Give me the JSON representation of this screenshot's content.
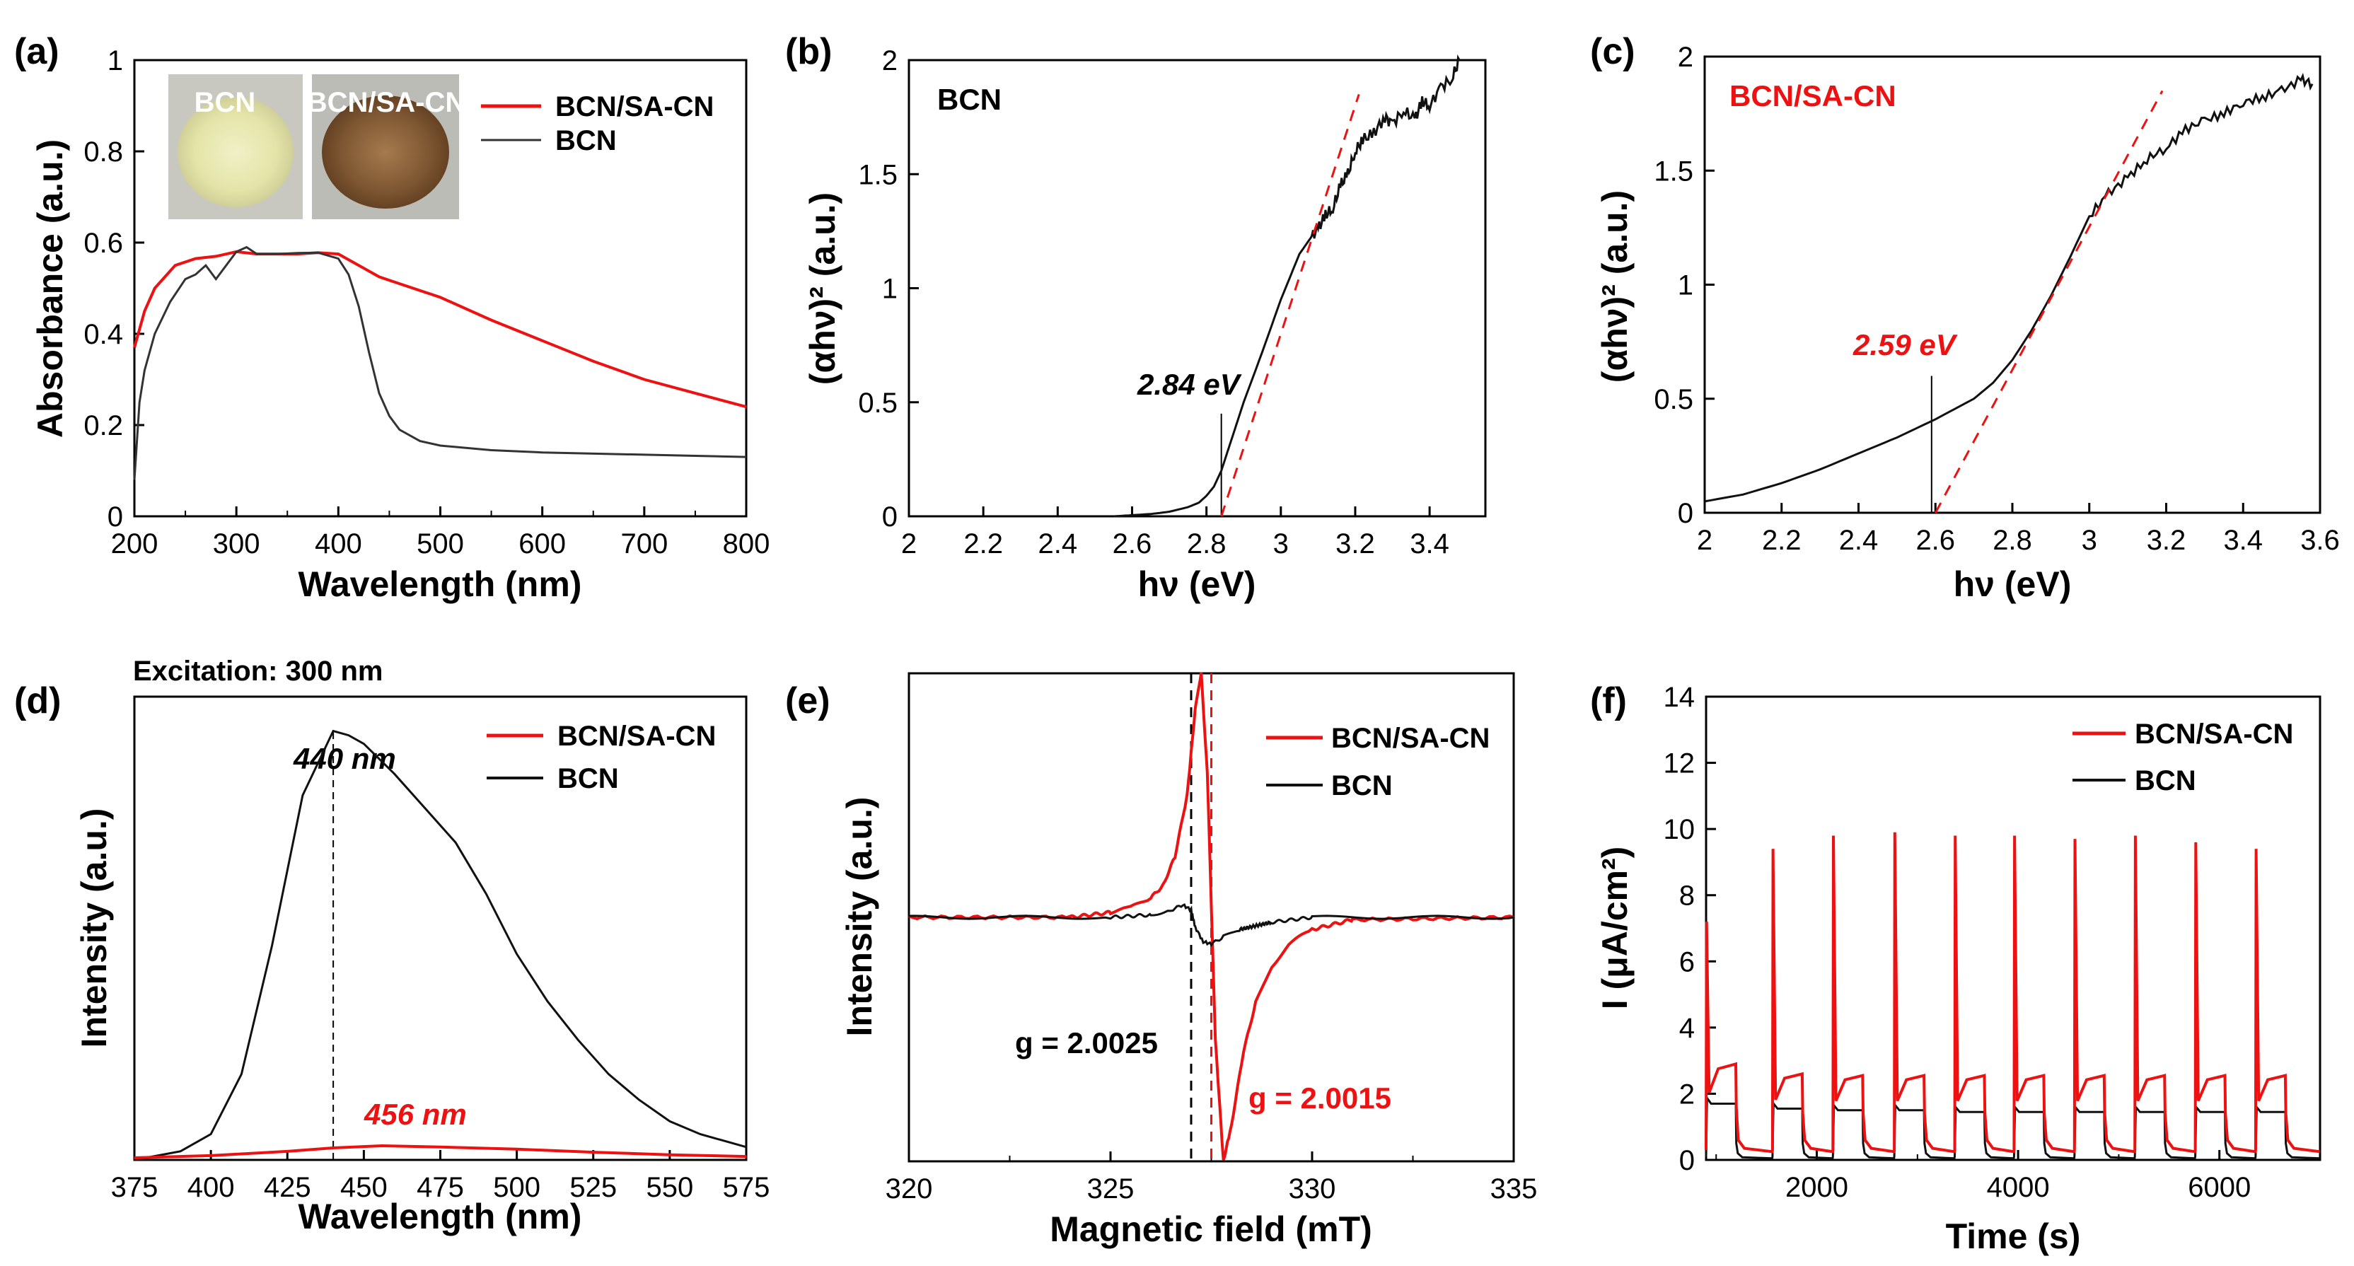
{
  "colors": {
    "red": "#ee1111",
    "black": "#111111"
  },
  "chart_data": [
    {
      "panel": "(a)",
      "type": "line",
      "xlabel": "Wavelength (nm)",
      "ylabel": "Absorbance (a.u.)",
      "xlim": [
        200,
        800
      ],
      "ylim": [
        0,
        1
      ],
      "xticks": [
        "200",
        "300",
        "400",
        "500",
        "600",
        "700",
        "800"
      ],
      "yticks": [
        "0",
        "0.2",
        "0.4",
        "0.6",
        "0.8",
        "1"
      ],
      "legend": [
        "BCN/SA-CN",
        "BCN"
      ],
      "photo_labels": [
        "BCN",
        "BCN/SA-CN"
      ],
      "series": [
        {
          "name": "BCN/SA-CN",
          "color": "red",
          "x": [
            200,
            210,
            220,
            240,
            260,
            280,
            300,
            320,
            340,
            360,
            380,
            400,
            420,
            440,
            460,
            500,
            550,
            600,
            650,
            700,
            750,
            800
          ],
          "y": [
            0.37,
            0.45,
            0.5,
            0.55,
            0.565,
            0.57,
            0.58,
            0.575,
            0.575,
            0.575,
            0.578,
            0.575,
            0.55,
            0.525,
            0.51,
            0.48,
            0.43,
            0.385,
            0.34,
            0.3,
            0.27,
            0.24
          ]
        },
        {
          "name": "BCN",
          "color": "black",
          "x": [
            200,
            205,
            210,
            220,
            235,
            250,
            260,
            270,
            280,
            290,
            300,
            310,
            320,
            340,
            360,
            380,
            400,
            410,
            420,
            430,
            440,
            450,
            460,
            480,
            500,
            550,
            600,
            700,
            800
          ],
          "y": [
            0.08,
            0.25,
            0.32,
            0.4,
            0.47,
            0.52,
            0.53,
            0.55,
            0.52,
            0.55,
            0.58,
            0.59,
            0.575,
            0.575,
            0.577,
            0.578,
            0.565,
            0.53,
            0.46,
            0.36,
            0.27,
            0.22,
            0.19,
            0.165,
            0.155,
            0.145,
            0.14,
            0.135,
            0.13
          ]
        }
      ]
    },
    {
      "panel": "(b)",
      "type": "line",
      "xlabel": "hν (eV)",
      "ylabel": "(αhν)² (a.u.)",
      "xlim": [
        2,
        3.55
      ],
      "ylim": [
        0,
        2
      ],
      "xticks": [
        "2",
        "2.2",
        "2.4",
        "2.6",
        "2.8",
        "3",
        "3.2",
        "3.4"
      ],
      "yticks": [
        "0",
        "0.5",
        "1",
        "1.5",
        "2"
      ],
      "sample_label": "BCN",
      "annotation": "2.84 eV",
      "series": [
        {
          "name": "BCN",
          "color": "black",
          "x": [
            2.55,
            2.6,
            2.65,
            2.7,
            2.75,
            2.78,
            2.8,
            2.82,
            2.84,
            2.86,
            2.88,
            2.9,
            2.95,
            3.0,
            3.05,
            3.08,
            3.1,
            3.12,
            3.14,
            3.16,
            3.18,
            3.2,
            3.22,
            3.25,
            3.28,
            3.3,
            3.33,
            3.36,
            3.38,
            3.4,
            3.43,
            3.46,
            3.48
          ],
          "y": [
            0.0,
            0.005,
            0.01,
            0.02,
            0.04,
            0.06,
            0.09,
            0.13,
            0.2,
            0.3,
            0.4,
            0.5,
            0.72,
            0.95,
            1.15,
            1.22,
            1.26,
            1.32,
            1.35,
            1.45,
            1.5,
            1.6,
            1.65,
            1.68,
            1.75,
            1.72,
            1.78,
            1.74,
            1.82,
            1.8,
            1.88,
            1.92,
            2.0
          ]
        }
      ],
      "tangent": {
        "x": [
          2.84,
          3.21
        ],
        "y": [
          0.0,
          1.85
        ]
      },
      "marker_x": 2.84
    },
    {
      "panel": "(c)",
      "type": "line",
      "xlabel": "hν (eV)",
      "ylabel": "(αhν)² (a.u.)",
      "xlim": [
        2,
        3.6
      ],
      "ylim": [
        0,
        2
      ],
      "xticks": [
        "2",
        "2.2",
        "2.4",
        "2.6",
        "2.8",
        "3",
        "3.2",
        "3.4",
        "3.6"
      ],
      "yticks": [
        "0",
        "0.5",
        "1",
        "1.5",
        "2"
      ],
      "sample_label": "BCN/SA-CN",
      "annotation": "2.59 eV",
      "series": [
        {
          "name": "BCN/SA-CN",
          "color": "black",
          "x": [
            2.0,
            2.1,
            2.2,
            2.3,
            2.4,
            2.5,
            2.6,
            2.7,
            2.75,
            2.8,
            2.85,
            2.9,
            2.95,
            3.0,
            3.05,
            3.1,
            3.15,
            3.2,
            3.25,
            3.3,
            3.35,
            3.4,
            3.45,
            3.5,
            3.55,
            3.58
          ],
          "y": [
            0.05,
            0.08,
            0.13,
            0.19,
            0.26,
            0.33,
            0.41,
            0.5,
            0.57,
            0.67,
            0.8,
            0.95,
            1.12,
            1.3,
            1.4,
            1.47,
            1.55,
            1.6,
            1.68,
            1.72,
            1.75,
            1.8,
            1.82,
            1.85,
            1.9,
            1.88
          ]
        }
      ],
      "tangent": {
        "x": [
          2.6,
          3.19
        ],
        "y": [
          0.0,
          1.85
        ]
      },
      "marker_x": 2.59
    },
    {
      "panel": "(d)",
      "type": "line",
      "title": "Excitation: 300 nm",
      "xlabel": "Wavelength (nm)",
      "ylabel": "Intensity (a.u.)",
      "xlim": [
        375,
        575
      ],
      "ylim": [
        0,
        1.08
      ],
      "xticks": [
        "375",
        "400",
        "425",
        "450",
        "475",
        "500",
        "525",
        "550",
        "575"
      ],
      "legend": [
        "BCN/SA-CN",
        "BCN"
      ],
      "peak_labels": [
        "440 nm",
        "456 nm"
      ],
      "series": [
        {
          "name": "BCN/SA-CN",
          "color": "red",
          "x": [
            375,
            400,
            425,
            440,
            456,
            475,
            500,
            525,
            550,
            575
          ],
          "y": [
            0.005,
            0.01,
            0.02,
            0.028,
            0.033,
            0.03,
            0.025,
            0.018,
            0.012,
            0.008
          ]
        },
        {
          "name": "BCN",
          "color": "black",
          "x": [
            375,
            390,
            400,
            410,
            420,
            430,
            440,
            445,
            450,
            460,
            470,
            480,
            490,
            500,
            510,
            520,
            530,
            540,
            550,
            560,
            575
          ],
          "y": [
            0.0,
            0.02,
            0.06,
            0.2,
            0.5,
            0.85,
            1.0,
            0.99,
            0.97,
            0.9,
            0.82,
            0.74,
            0.62,
            0.48,
            0.37,
            0.28,
            0.2,
            0.14,
            0.09,
            0.06,
            0.03
          ]
        }
      ],
      "marker_x": 440
    },
    {
      "panel": "(e)",
      "type": "line",
      "xlabel": "Magnetic field (mT)",
      "ylabel": "Intensity (a.u.)",
      "xlim": [
        320,
        335
      ],
      "ylim": [
        -1,
        1
      ],
      "xticks": [
        "320",
        "325",
        "330",
        "335"
      ],
      "legend": [
        "BCN/SA-CN",
        "BCN"
      ],
      "g_labels": [
        "g = 2.0025",
        "g = 2.0015"
      ],
      "series": [
        {
          "name": "BCN/SA-CN",
          "color": "red",
          "x": [
            320,
            324,
            325,
            325.5,
            326,
            326.3,
            326.6,
            326.9,
            327.1,
            327.25,
            327.4,
            327.6,
            327.8,
            328,
            328.3,
            328.6,
            329,
            329.5,
            330,
            331,
            335
          ],
          "y": [
            0,
            0.0,
            0.02,
            0.04,
            0.08,
            0.13,
            0.25,
            0.5,
            0.85,
            1.0,
            0.6,
            -0.5,
            -1.0,
            -0.85,
            -0.55,
            -0.35,
            -0.2,
            -0.1,
            -0.05,
            -0.01,
            0
          ]
        },
        {
          "name": "BCN",
          "color": "black",
          "x": [
            320,
            325,
            326,
            326.5,
            326.8,
            327,
            327.1,
            327.3,
            327.5,
            327.8,
            328.2,
            329,
            330,
            335
          ],
          "y": [
            0,
            0,
            0.01,
            0.03,
            0.05,
            0.03,
            -0.04,
            -0.1,
            -0.11,
            -0.08,
            -0.05,
            -0.02,
            0,
            0
          ]
        }
      ],
      "vlines": [
        327.0,
        327.5
      ]
    },
    {
      "panel": "(f)",
      "type": "line",
      "xlabel": "Time (s)",
      "ylabel": "I (μA/cm²)",
      "xlim": [
        900,
        7000
      ],
      "ylim": [
        0,
        14
      ],
      "xticks": [
        "2000",
        "4000",
        "6000"
      ],
      "yticks": [
        "0",
        "2",
        "4",
        "6",
        "8",
        "10",
        "12",
        "14"
      ],
      "legend": [
        "BCN/SA-CN",
        "BCN"
      ],
      "on_times": [
        900,
        1560,
        2160,
        2770,
        3370,
        3960,
        4560,
        5160,
        5760,
        6360
      ],
      "period_on": 300,
      "red_spike": [
        7.2,
        9.4,
        9.8,
        9.9,
        9.8,
        9.8,
        9.7,
        9.8,
        9.6,
        9.4
      ],
      "red_plateau": [
        2.9,
        2.6,
        2.55,
        2.55,
        2.55,
        2.55,
        2.55,
        2.55,
        2.55,
        2.55
      ],
      "black_plateau": [
        1.7,
        1.55,
        1.5,
        1.5,
        1.45,
        1.45,
        1.45,
        1.45,
        1.45,
        1.45
      ]
    }
  ]
}
